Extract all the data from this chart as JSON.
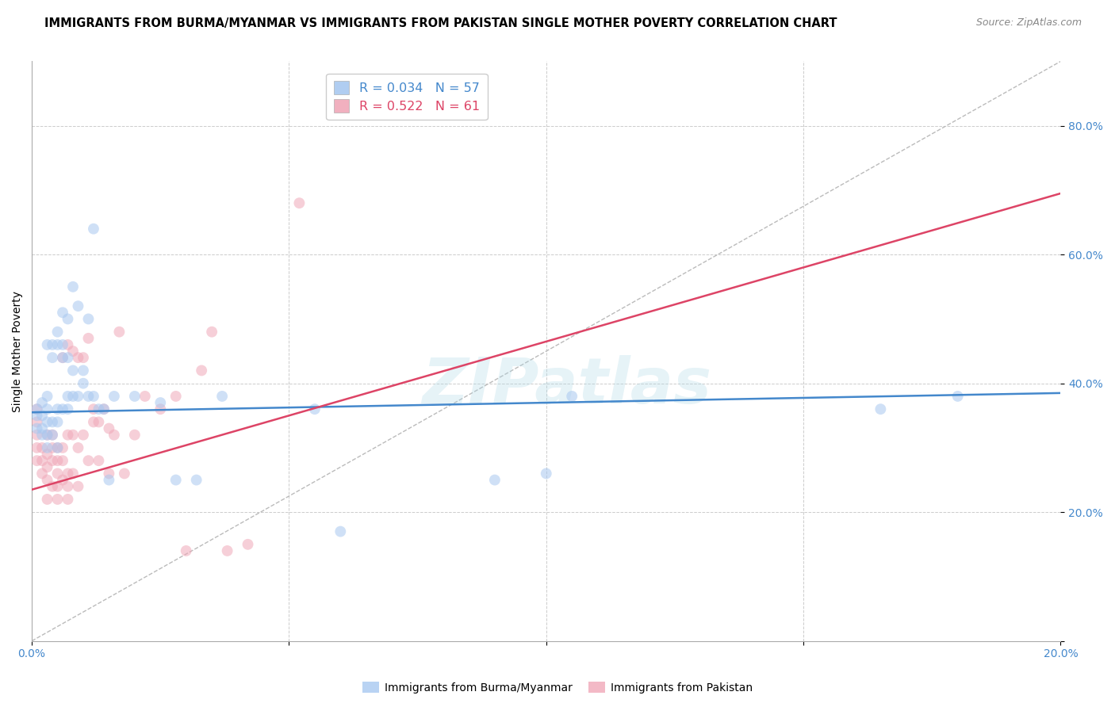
{
  "title": "IMMIGRANTS FROM BURMA/MYANMAR VS IMMIGRANTS FROM PAKISTAN SINGLE MOTHER POVERTY CORRELATION CHART",
  "source": "Source: ZipAtlas.com",
  "ylabel": "Single Mother Poverty",
  "xlim": [
    0.0,
    0.2
  ],
  "ylim": [
    0.0,
    0.9
  ],
  "yticks": [
    0.0,
    0.2,
    0.4,
    0.6,
    0.8
  ],
  "xticks": [
    0.0,
    0.05,
    0.1,
    0.15,
    0.2
  ],
  "color_burma": "#a8c8f0",
  "color_pakistan": "#f0a8b8",
  "line_color_burma": "#4488cc",
  "line_color_pakistan": "#dd4466",
  "legend_label_burma": "Immigrants from Burma/Myanmar",
  "legend_label_pakistan": "Immigrants from Pakistan",
  "background_color": "#ffffff",
  "grid_color": "#cccccc",
  "marker_size": 100,
  "marker_alpha": 0.55,
  "line_width": 1.8,
  "ref_line_color": "#bbbbbb",
  "burma_x": [
    0.001,
    0.001,
    0.001,
    0.002,
    0.002,
    0.002,
    0.002,
    0.003,
    0.003,
    0.003,
    0.003,
    0.003,
    0.003,
    0.004,
    0.004,
    0.004,
    0.004,
    0.005,
    0.005,
    0.005,
    0.005,
    0.005,
    0.006,
    0.006,
    0.006,
    0.006,
    0.007,
    0.007,
    0.007,
    0.007,
    0.008,
    0.008,
    0.008,
    0.009,
    0.009,
    0.01,
    0.01,
    0.011,
    0.011,
    0.012,
    0.012,
    0.013,
    0.014,
    0.015,
    0.016,
    0.02,
    0.025,
    0.028,
    0.032,
    0.037,
    0.055,
    0.06,
    0.09,
    0.1,
    0.105,
    0.165,
    0.18
  ],
  "burma_y": [
    0.33,
    0.35,
    0.36,
    0.32,
    0.33,
    0.35,
    0.37,
    0.3,
    0.32,
    0.34,
    0.36,
    0.38,
    0.46,
    0.32,
    0.34,
    0.44,
    0.46,
    0.3,
    0.34,
    0.36,
    0.46,
    0.48,
    0.36,
    0.44,
    0.46,
    0.51,
    0.36,
    0.38,
    0.44,
    0.5,
    0.38,
    0.42,
    0.55,
    0.38,
    0.52,
    0.4,
    0.42,
    0.38,
    0.5,
    0.38,
    0.64,
    0.36,
    0.36,
    0.25,
    0.38,
    0.38,
    0.37,
    0.25,
    0.25,
    0.38,
    0.36,
    0.17,
    0.25,
    0.26,
    0.38,
    0.36,
    0.38
  ],
  "pakistan_x": [
    0.001,
    0.001,
    0.001,
    0.001,
    0.001,
    0.002,
    0.002,
    0.002,
    0.003,
    0.003,
    0.003,
    0.003,
    0.003,
    0.004,
    0.004,
    0.004,
    0.004,
    0.005,
    0.005,
    0.005,
    0.005,
    0.005,
    0.006,
    0.006,
    0.006,
    0.006,
    0.007,
    0.007,
    0.007,
    0.007,
    0.007,
    0.008,
    0.008,
    0.008,
    0.009,
    0.009,
    0.009,
    0.01,
    0.01,
    0.011,
    0.011,
    0.012,
    0.012,
    0.013,
    0.013,
    0.014,
    0.015,
    0.015,
    0.016,
    0.017,
    0.018,
    0.02,
    0.022,
    0.025,
    0.028,
    0.03,
    0.033,
    0.035,
    0.038,
    0.042,
    0.052
  ],
  "pakistan_y": [
    0.3,
    0.32,
    0.34,
    0.36,
    0.28,
    0.28,
    0.3,
    0.26,
    0.27,
    0.29,
    0.32,
    0.25,
    0.22,
    0.24,
    0.28,
    0.3,
    0.32,
    0.24,
    0.26,
    0.28,
    0.3,
    0.22,
    0.25,
    0.28,
    0.3,
    0.44,
    0.22,
    0.24,
    0.26,
    0.32,
    0.46,
    0.26,
    0.32,
    0.45,
    0.24,
    0.3,
    0.44,
    0.32,
    0.44,
    0.28,
    0.47,
    0.34,
    0.36,
    0.28,
    0.34,
    0.36,
    0.33,
    0.26,
    0.32,
    0.48,
    0.26,
    0.32,
    0.38,
    0.36,
    0.38,
    0.14,
    0.42,
    0.48,
    0.14,
    0.15,
    0.68
  ],
  "burma_line_x0": 0.0,
  "burma_line_x1": 0.2,
  "burma_line_y0": 0.355,
  "burma_line_y1": 0.385,
  "pakistan_line_x0": 0.0,
  "pakistan_line_x1": 0.2,
  "pakistan_line_y0": 0.235,
  "pakistan_line_y1": 0.695
}
